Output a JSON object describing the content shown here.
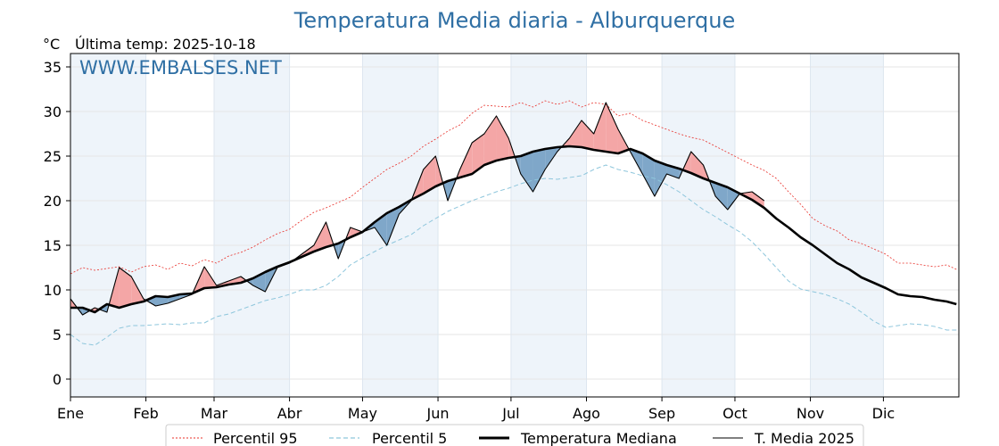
{
  "chart_data": {
    "type": "line",
    "title": "Temperatura Media diaria - Alburquerque",
    "unit": "°C",
    "subtitle": "Última temp: 2025-10-18",
    "watermark": "WWW.EMBALSES.NET",
    "ylim": [
      -2,
      36.5
    ],
    "yticks": [
      0,
      5,
      10,
      15,
      20,
      25,
      30,
      35
    ],
    "x_days": 365,
    "months": [
      "Ene",
      "Feb",
      "Mar",
      "Abr",
      "May",
      "Jun",
      "Jul",
      "Ago",
      "Sep",
      "Oct",
      "Nov",
      "Dic"
    ],
    "month_start_days": [
      0,
      31,
      59,
      90,
      120,
      151,
      181,
      212,
      243,
      273,
      304,
      334
    ],
    "grid": true,
    "legend_position": "bottom",
    "x": [
      0,
      5,
      10,
      15,
      20,
      25,
      30,
      35,
      40,
      45,
      50,
      55,
      60,
      65,
      70,
      75,
      80,
      85,
      90,
      95,
      100,
      105,
      110,
      115,
      120,
      125,
      130,
      135,
      140,
      145,
      150,
      155,
      160,
      165,
      170,
      175,
      180,
      185,
      190,
      195,
      200,
      205,
      210,
      215,
      220,
      225,
      230,
      235,
      240,
      245,
      250,
      255,
      260,
      265,
      270,
      275,
      280,
      285,
      290,
      295,
      300,
      305,
      310,
      315,
      320,
      325,
      330,
      335,
      340,
      345,
      350,
      355,
      360,
      364
    ],
    "series": [
      {
        "name": "Percentil 95",
        "color": "#e8302a",
        "values": [
          11.8,
          12.5,
          12.2,
          12.4,
          12.6,
          12.0,
          12.6,
          12.8,
          12.3,
          13.0,
          12.7,
          13.4,
          13.0,
          13.8,
          14.2,
          14.8,
          15.6,
          16.3,
          16.8,
          17.8,
          18.7,
          19.2,
          19.8,
          20.4,
          21.5,
          22.5,
          23.5,
          24.2,
          25.0,
          26.1,
          26.9,
          27.8,
          28.5,
          29.8,
          30.7,
          30.6,
          30.5,
          31.0,
          30.5,
          31.2,
          30.8,
          31.2,
          30.5,
          31.0,
          30.8,
          29.5,
          29.8,
          29.0,
          28.5,
          28.0,
          27.5,
          27.1,
          26.8,
          26.1,
          25.4,
          24.7,
          24.0,
          23.4,
          22.5,
          21.0,
          19.6,
          18.0,
          17.2,
          16.6,
          15.6,
          15.2,
          14.6,
          14.0,
          13.0,
          13.0,
          12.8,
          12.6,
          12.8,
          12.3
        ]
      },
      {
        "name": "Percentil 5",
        "color": "#8ec6dc",
        "values": [
          5.0,
          4.0,
          3.8,
          4.7,
          5.7,
          6.0,
          6.0,
          6.1,
          6.2,
          6.1,
          6.3,
          6.3,
          7.0,
          7.3,
          7.8,
          8.3,
          8.8,
          9.1,
          9.5,
          10.0,
          10.0,
          10.5,
          11.5,
          12.8,
          13.6,
          14.3,
          15.0,
          15.6,
          16.2,
          17.2,
          18.0,
          18.8,
          19.4,
          20.0,
          20.5,
          21.0,
          21.4,
          21.9,
          22.3,
          22.5,
          22.4,
          22.6,
          22.8,
          23.5,
          24.0,
          23.5,
          23.2,
          22.8,
          22.5,
          21.8,
          21.0,
          20.0,
          19.0,
          18.2,
          17.3,
          16.5,
          15.4,
          14.0,
          12.5,
          11.0,
          10.1,
          9.8,
          9.5,
          9.0,
          8.4,
          7.5,
          6.5,
          5.8,
          6.0,
          6.2,
          6.1,
          5.9,
          5.5,
          5.5
        ]
      },
      {
        "name": "Temperatura Mediana",
        "color": "#000000",
        "values": [
          8.0,
          8.0,
          7.5,
          8.4,
          8.0,
          8.4,
          8.7,
          9.3,
          9.2,
          9.5,
          9.6,
          10.2,
          10.3,
          10.6,
          10.8,
          11.3,
          12.0,
          12.6,
          13.1,
          13.7,
          14.3,
          14.8,
          15.2,
          15.9,
          16.5,
          17.6,
          18.6,
          19.3,
          20.1,
          20.8,
          21.6,
          22.2,
          22.6,
          23.0,
          24.0,
          24.5,
          24.8,
          25.0,
          25.5,
          25.8,
          26.0,
          26.1,
          26.0,
          25.7,
          25.5,
          25.3,
          25.8,
          25.3,
          24.5,
          24.0,
          23.6,
          23.1,
          22.5,
          22.0,
          21.5,
          20.8,
          20.1,
          19.2,
          18.0,
          17.0,
          15.9,
          15.0,
          14.0,
          13.0,
          12.3,
          11.4,
          10.8,
          10.2,
          9.5,
          9.3,
          9.2,
          8.9,
          8.7,
          8.4
        ]
      },
      {
        "name": "T. Media 2025",
        "color": "#000000",
        "values": [
          9.0,
          7.2,
          8.0,
          7.5,
          12.5,
          11.5,
          9.0,
          8.2,
          8.5,
          9.0,
          9.5,
          12.6,
          10.5,
          11.0,
          11.5,
          10.5,
          9.8,
          12.5,
          13.0,
          14.0,
          15.0,
          17.6,
          13.5,
          17.0,
          16.5,
          17.0,
          15.0,
          18.5,
          20.0,
          23.5,
          25.0,
          20.0,
          23.5,
          26.5,
          27.5,
          29.5,
          27.0,
          23.0,
          21.0,
          23.5,
          25.5,
          27.0,
          29.0,
          27.5,
          31.0,
          28.0,
          25.5,
          23.0,
          20.5,
          23.0,
          22.5,
          25.5,
          24.0,
          20.5,
          19.0,
          20.8,
          21.0,
          20.0,
          null,
          null,
          null,
          null,
          null,
          null,
          null,
          null,
          null,
          null,
          null,
          null,
          null,
          null,
          null,
          null
        ]
      }
    ],
    "legend": {
      "p95": "Percentil 95",
      "p5": "Percentil 5",
      "median": "Temperatura Mediana",
      "year": "T. Media 2025"
    },
    "fill_colors": {
      "above": "#f4a6a6",
      "below": "#7fa7c9"
    },
    "band_color": "#eef4fa"
  }
}
